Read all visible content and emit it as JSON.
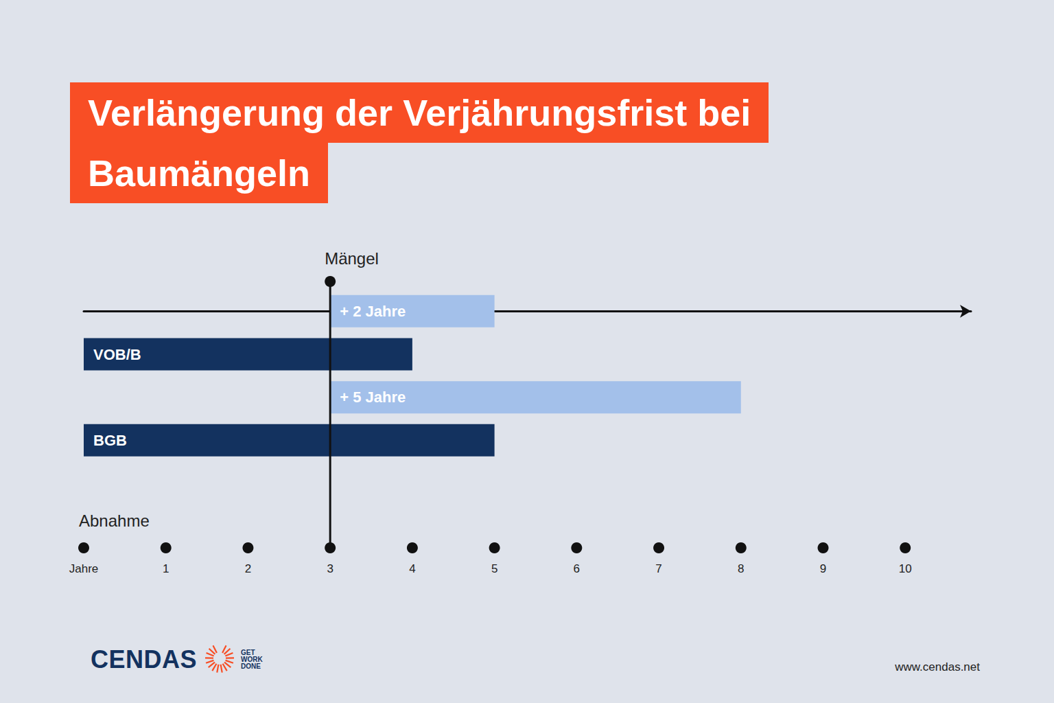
{
  "chart_data": {
    "type": "bar",
    "orientation": "horizontal",
    "title": "Verlängerung der Verjährungsfrist bei Baumängeln",
    "xlabel": "Abnahme",
    "bars": [
      {
        "label": "+ 2 Jahre",
        "start": 3,
        "end": 5,
        "color": "#a3c0ea"
      },
      {
        "label": "VOB/B",
        "start": 0,
        "end": 4,
        "color": "#13325f"
      },
      {
        "label": "+ 5 Jahre",
        "start": 3,
        "end": 8,
        "color": "#a3c0ea"
      },
      {
        "label": "BGB",
        "start": 0,
        "end": 5,
        "color": "#13325f"
      }
    ],
    "annotations": [
      {
        "x": 3,
        "text": "Mängel"
      }
    ],
    "xlim": [
      0,
      10.8
    ],
    "xticks": [
      {
        "value": 0,
        "label": "Jahre"
      },
      1,
      2,
      3,
      4,
      5,
      6,
      7,
      8,
      9,
      10
    ],
    "grid": false,
    "tick_labels": "x"
  },
  "footer": {
    "logo": "CENDAS",
    "tagline": [
      "GET",
      "WORK",
      "DONE"
    ],
    "url": "www.cendas.net"
  }
}
